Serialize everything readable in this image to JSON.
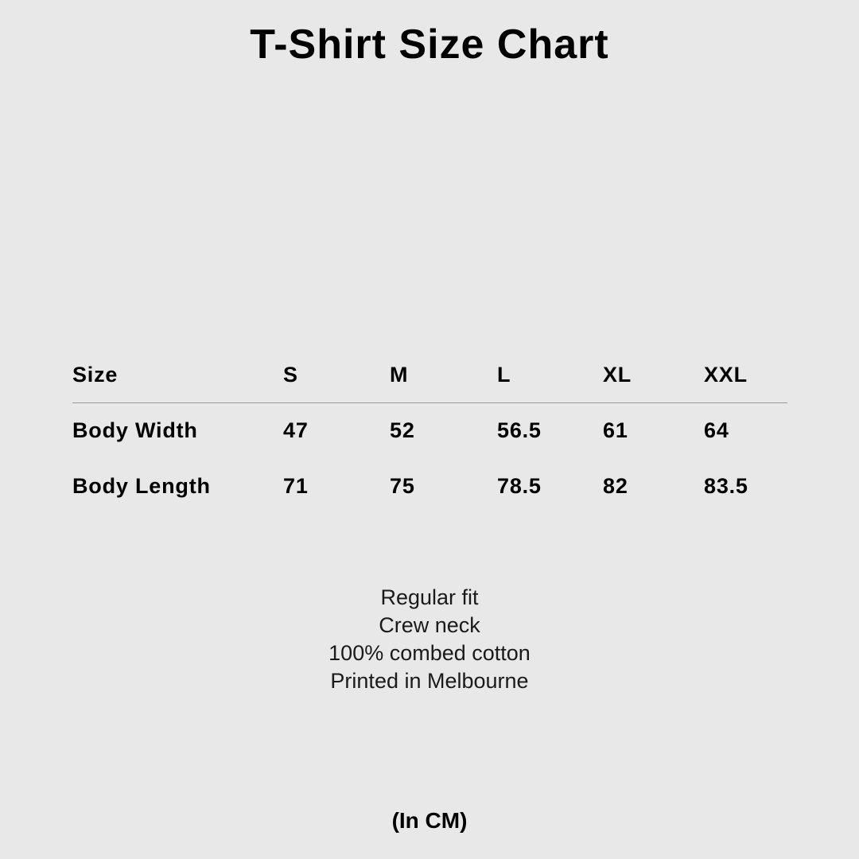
{
  "title": "T-Shirt Size Chart",
  "table": {
    "headers": [
      "Size",
      "S",
      "M",
      "L",
      "XL",
      "XXL"
    ],
    "rows": [
      [
        "Body Width",
        "47",
        "52",
        "56.5",
        "61",
        "64"
      ],
      [
        "Body Length",
        "71",
        "75",
        "78.5",
        "82",
        "83.5"
      ]
    ]
  },
  "notes": [
    "Regular fit",
    "Crew neck",
    "100% combed cotton",
    "Printed in Melbourne"
  ],
  "unit_label": "(In CM)",
  "colors": {
    "background": "#e8e8e8",
    "text": "#000000",
    "divider": "#9a9a9a"
  }
}
